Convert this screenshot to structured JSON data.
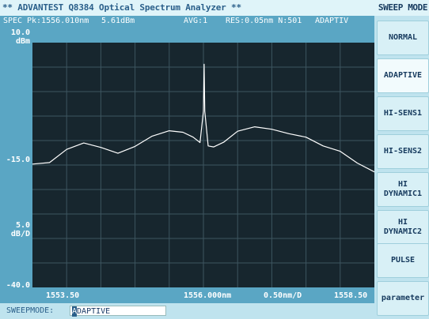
{
  "title": "** ADVANTEST Q8384 Optical Spectrum Analyzer **",
  "menu_title": "SWEEP MODE",
  "info": {
    "spec": "SPEC",
    "peak": "Pk:1556.010nm",
    "level": "5.61dBm",
    "avg": "AVG:1",
    "res": "RES:0.05nm N:501",
    "mode": "ADAPTIV"
  },
  "y_axis": {
    "top": "10.0",
    "top_unit": "dBm",
    "ref": "-15.0",
    "scale": "5.0",
    "scale_unit": "dB/D",
    "bottom": "-40.0"
  },
  "x_axis": {
    "start": "1553.50",
    "center": "1556.000nm",
    "span": "0.50nm/D",
    "stop": "1558.50"
  },
  "chart_data": {
    "type": "line",
    "x_unit": "nm",
    "y_unit": "dBm",
    "xlim": [
      1553.5,
      1558.5
    ],
    "ylim": [
      -40,
      10
    ],
    "grid": true,
    "x": [
      1553.5,
      1553.75,
      1554.0,
      1554.25,
      1554.5,
      1554.75,
      1555.0,
      1555.25,
      1555.5,
      1555.7,
      1555.85,
      1555.95,
      1556.0,
      1556.01,
      1556.02,
      1556.07,
      1556.15,
      1556.3,
      1556.5,
      1556.75,
      1557.0,
      1557.25,
      1557.5,
      1557.75,
      1558.0,
      1558.25,
      1558.5
    ],
    "y": [
      -14.8,
      -14.5,
      -11.8,
      -10.5,
      -11.4,
      -12.6,
      -11.2,
      -9.1,
      -8.0,
      -8.3,
      -9.3,
      -10.4,
      -4.0,
      5.6,
      -4.0,
      -11.1,
      -11.3,
      -10.3,
      -8.1,
      -7.2,
      -7.7,
      -8.6,
      -9.3,
      -11.1,
      -12.2,
      -14.6,
      -16.4
    ]
  },
  "softkeys": [
    {
      "label": "NORMAL",
      "active": false
    },
    {
      "label": "ADAPTIVE",
      "active": true
    },
    {
      "label": "HI-SENS1",
      "active": false
    },
    {
      "label": "HI-SENS2",
      "active": false
    },
    {
      "label": "HI\nDYNAMIC1",
      "active": false
    },
    {
      "label": "HI\nDYNAMIC2",
      "active": false
    },
    {
      "label": "PULSE",
      "active": false
    },
    {
      "label": "parameter",
      "active": false
    }
  ],
  "status": {
    "label": "SWEEPMODE:",
    "cursor_char": "A",
    "value_rest": "DAPTIVE"
  },
  "colors": {
    "grid_bg": "#17262e",
    "trace": "#ffffff",
    "panel": "#5aa6c4",
    "grid_line": "#3d5560"
  }
}
